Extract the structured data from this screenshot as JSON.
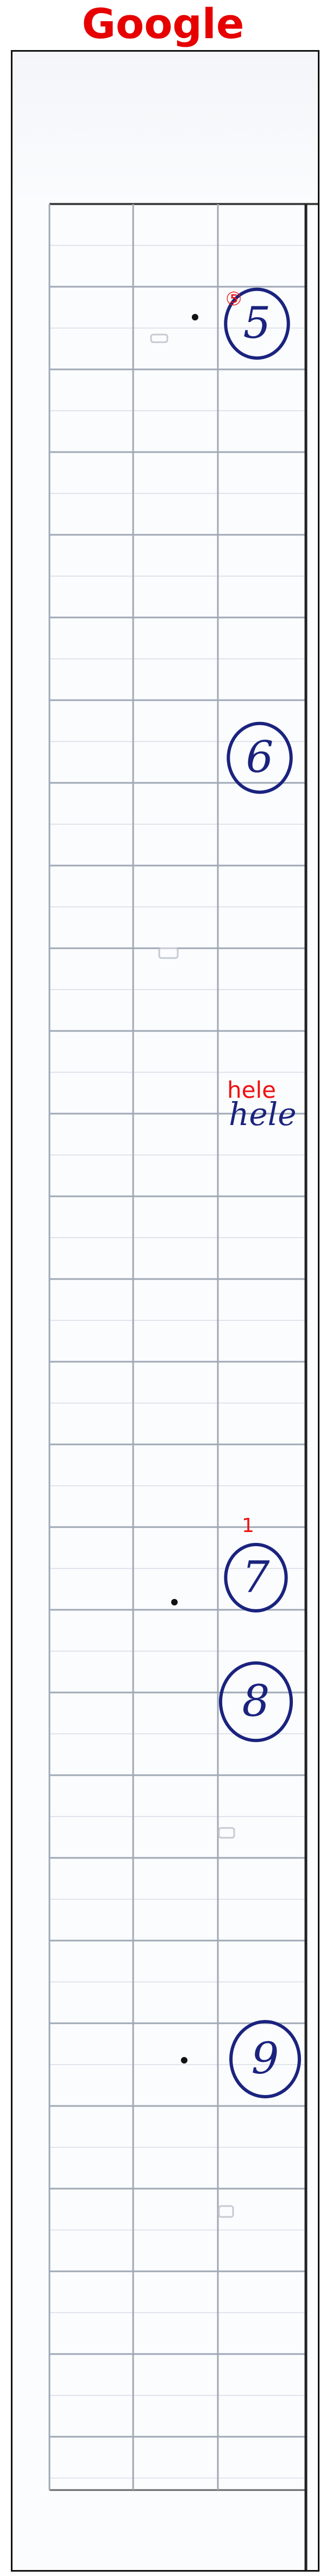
{
  "brand": {
    "label": "Google",
    "color": "#e60000"
  },
  "overlay_labels": [
    {
      "text": "⑤"
    },
    {
      "text": "hele"
    },
    {
      "text": "1"
    }
  ],
  "handwriting": {
    "circled_numbers": [
      "5",
      "6",
      "7",
      "8",
      "9"
    ],
    "word": "hele"
  },
  "colors": {
    "grid_line": "#9fa8b5",
    "ink": "#1a237e",
    "overlay_text": "#ee1111",
    "frame_border": "#111111"
  }
}
